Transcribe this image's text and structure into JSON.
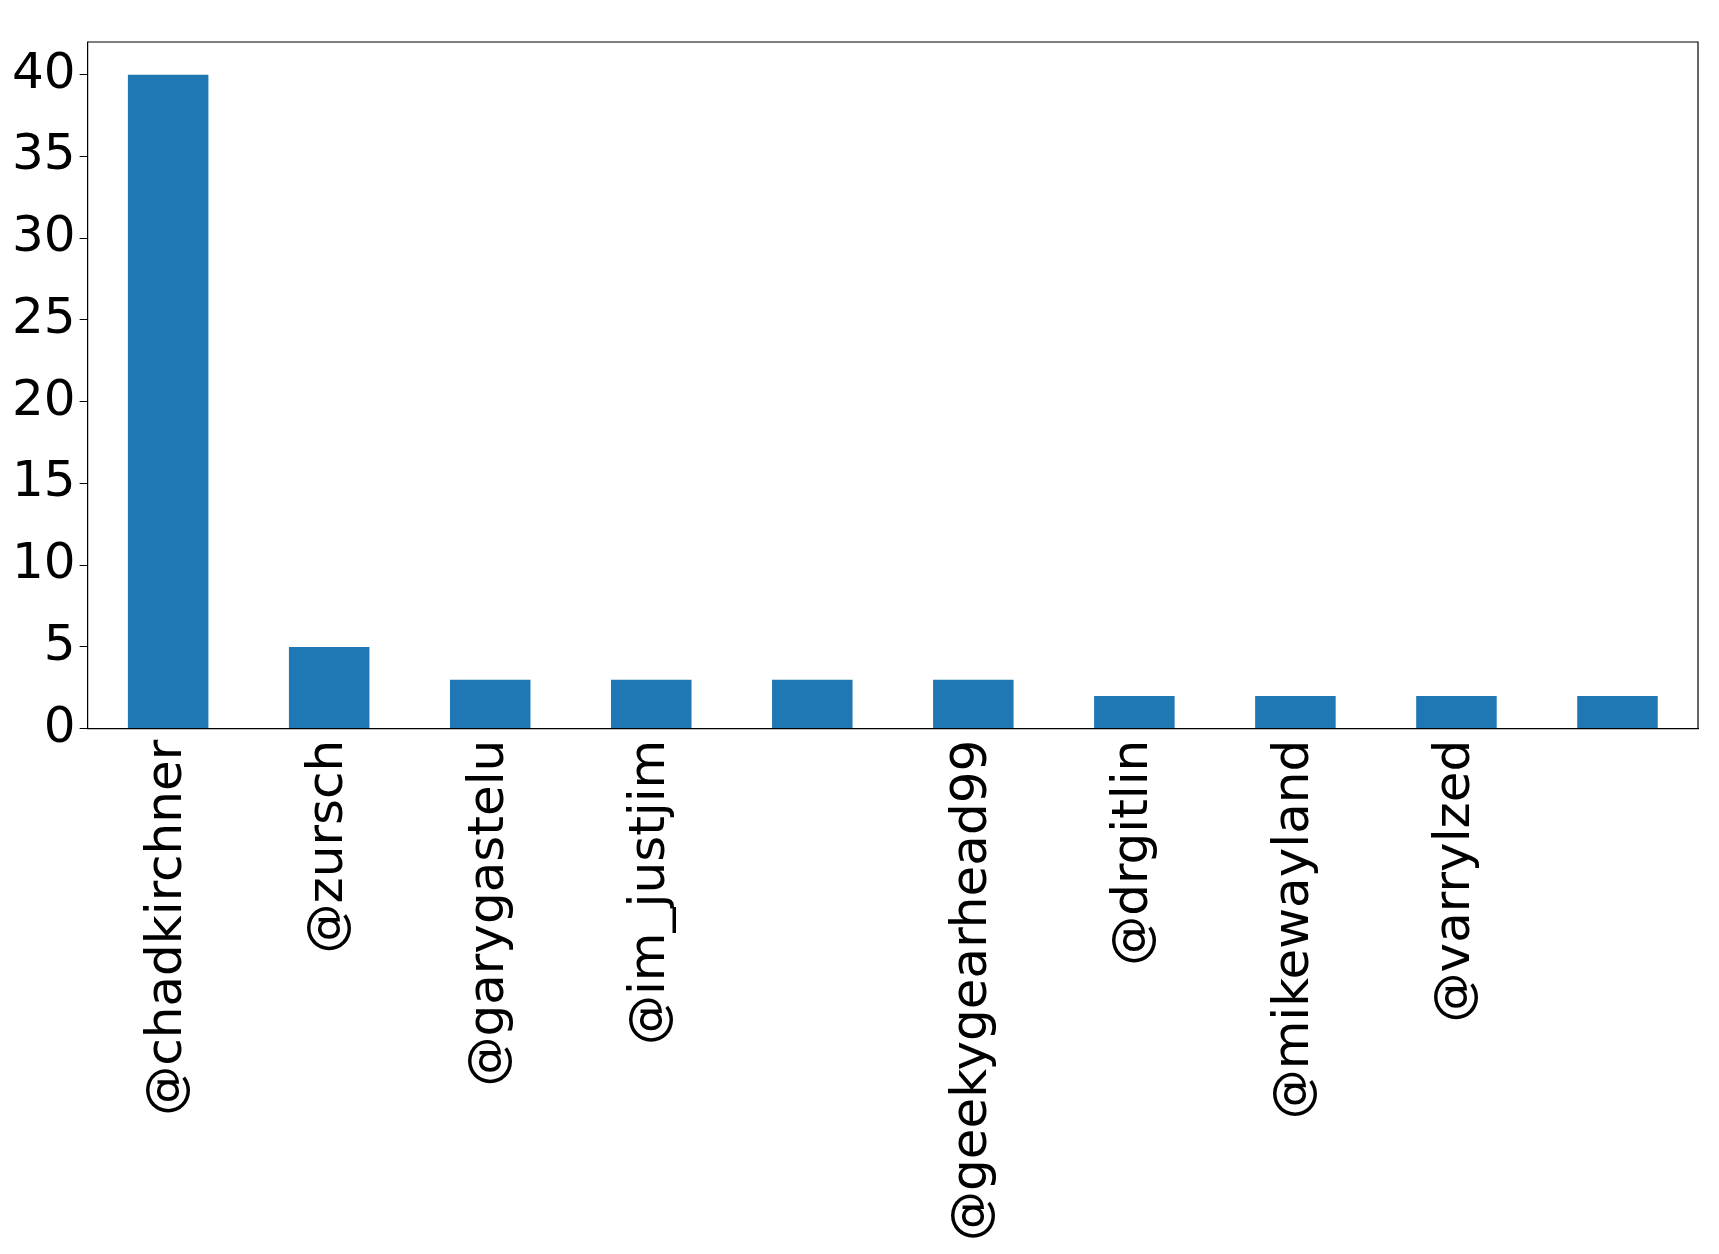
{
  "chart_data": {
    "type": "bar",
    "categories": [
      "@chadkirchner",
      "@zursch",
      "@garygastelu",
      "@im_justjim",
      null,
      "@geekygearhead99",
      "@drgitlin",
      "@mikewayland",
      "@varrylzed",
      null
    ],
    "values": [
      40,
      5,
      3,
      3,
      3,
      3,
      2,
      2,
      2,
      2
    ],
    "color": "#1f77b4",
    "ylim": [
      0,
      42
    ],
    "yticks": [
      0,
      5,
      10,
      15,
      20,
      25,
      30,
      35,
      40
    ],
    "grid": false,
    "legend": false
  }
}
